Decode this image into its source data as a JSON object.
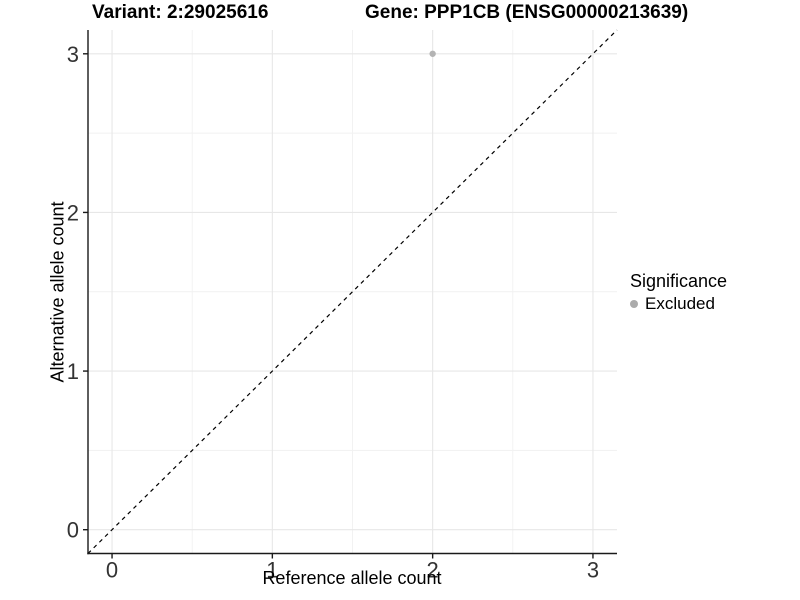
{
  "header": {
    "title_left": "Variant: 2:29025616",
    "title_right": "Gene: PPP1CB (ENSG00000213639)"
  },
  "chart_data": {
    "type": "scatter",
    "title": "Variant: 2:29025616 | Gene: PPP1CB (ENSG00000213639)",
    "xlabel": "Reference allele count",
    "ylabel": "Alternative allele count",
    "xlim": [
      -0.15,
      3.15
    ],
    "ylim": [
      -0.15,
      3.15
    ],
    "x_ticks": [
      0,
      1,
      2,
      3
    ],
    "y_ticks": [
      0,
      1,
      2,
      3
    ],
    "x_minor_ticks": [
      0.5,
      1.5,
      2.5
    ],
    "y_minor_ticks": [
      0.5,
      1.5,
      2.5
    ],
    "grid": true,
    "reference_line": {
      "slope": 1,
      "intercept": 0,
      "style": "dashed",
      "color": "#000000"
    },
    "series": [
      {
        "name": "Excluded",
        "color": "#b3b3b3",
        "points": [
          {
            "x": 2,
            "y": 3
          }
        ]
      }
    ],
    "legend": {
      "position": "right",
      "title": "Significance",
      "items": [
        {
          "label": "Excluded",
          "color": "#ababab"
        }
      ]
    },
    "style": {
      "grid_major_color": "#e7e7e7",
      "grid_minor_color": "#f1f1f1",
      "axis_line_color": "#1a1a1a",
      "tick_label_color": "#333333",
      "background": "#ffffff"
    }
  }
}
